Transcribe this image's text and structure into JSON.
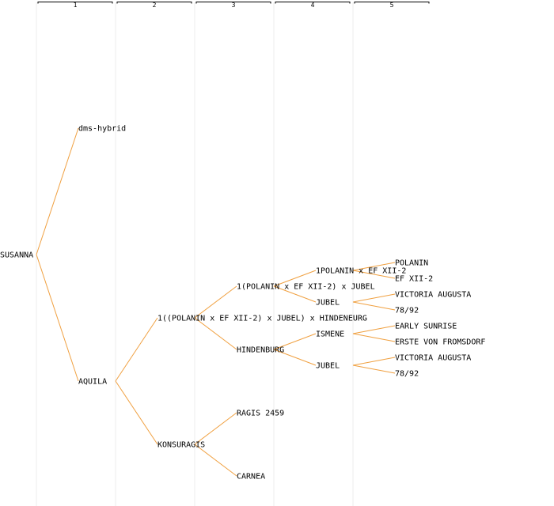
{
  "columns": [
    "1",
    "2",
    "3",
    "4",
    "5"
  ],
  "colors": {
    "edge": "#f0a040",
    "column_line": "#ececec",
    "header_line": "#000000",
    "text": "#000000"
  },
  "tree": {
    "root": "SUSANNA",
    "nodes": [
      {
        "id": "n0",
        "label": "SUSANNA",
        "gen": 0,
        "row": 16,
        "parent": null
      },
      {
        "id": "n1",
        "label": "dms-hybrid",
        "gen": 1,
        "row": 8,
        "parent": "n0"
      },
      {
        "id": "n2",
        "label": "AQUILA",
        "gen": 1,
        "row": 24,
        "parent": "n0"
      },
      {
        "id": "n3",
        "label": "1((POLANIN x EF XII-2) x JUBEL) x HINDENEURG",
        "gen": 2,
        "row": 20,
        "parent": "n2"
      },
      {
        "id": "n4",
        "label": "KONSURAGIS",
        "gen": 2,
        "row": 28,
        "parent": "n2"
      },
      {
        "id": "n5",
        "label": "1(POLANIN x EF XII-2) x JUBEL",
        "gen": 3,
        "row": 18,
        "parent": "n3"
      },
      {
        "id": "n6",
        "label": "HINDENBURG",
        "gen": 3,
        "row": 22,
        "parent": "n3"
      },
      {
        "id": "n7",
        "label": "RAGIS 2459",
        "gen": 3,
        "row": 26,
        "parent": "n4"
      },
      {
        "id": "n8",
        "label": "CARNEA",
        "gen": 3,
        "row": 30,
        "parent": "n4"
      },
      {
        "id": "n9",
        "label": "1POLANIN x EF XII-2",
        "gen": 4,
        "row": 17,
        "parent": "n5"
      },
      {
        "id": "n10",
        "label": "JUBEL",
        "gen": 4,
        "row": 19,
        "parent": "n5"
      },
      {
        "id": "n11",
        "label": "ISMENE",
        "gen": 4,
        "row": 21,
        "parent": "n6"
      },
      {
        "id": "n12",
        "label": "JUBEL",
        "gen": 4,
        "row": 23,
        "parent": "n6"
      },
      {
        "id": "n13",
        "label": "POLANIN",
        "gen": 5,
        "row": 16.5,
        "parent": "n9"
      },
      {
        "id": "n14",
        "label": "EF XII-2",
        "gen": 5,
        "row": 17.5,
        "parent": "n9"
      },
      {
        "id": "n15",
        "label": "VICTORIA AUGUSTA",
        "gen": 5,
        "row": 18.5,
        "parent": "n10"
      },
      {
        "id": "n16",
        "label": "78/92",
        "gen": 5,
        "row": 19.5,
        "parent": "n10"
      },
      {
        "id": "n17",
        "label": "EARLY SUNRISE",
        "gen": 5,
        "row": 20.5,
        "parent": "n11"
      },
      {
        "id": "n18",
        "label": "ERSTE VON FROMSDORF",
        "gen": 5,
        "row": 21.5,
        "parent": "n11"
      },
      {
        "id": "n19",
        "label": "VICTORIA AUGUSTA",
        "gen": 5,
        "row": 22.5,
        "parent": "n12"
      },
      {
        "id": "n20",
        "label": "78/92",
        "gen": 5,
        "row": 23.5,
        "parent": "n12"
      }
    ]
  }
}
